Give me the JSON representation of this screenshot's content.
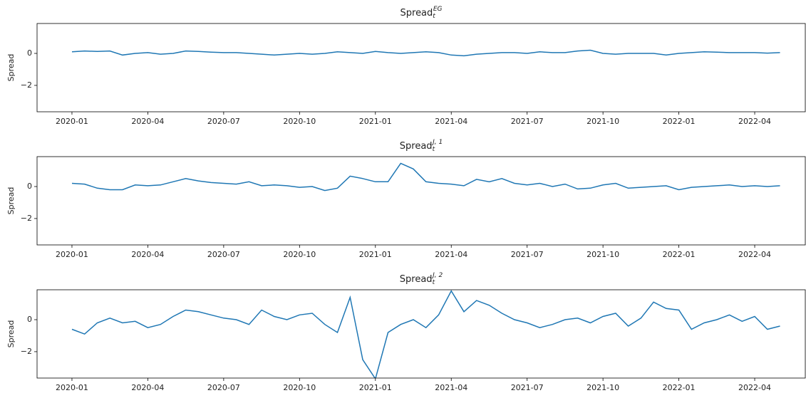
{
  "chart_data": [
    {
      "type": "line",
      "title": "Spread",
      "title_subscript": "t",
      "title_superscript": "EG",
      "ylabel": "Spread",
      "x": [
        0,
        0.5,
        1,
        1.5,
        2,
        2.5,
        3,
        3.5,
        4,
        4.5,
        5,
        5.5,
        6,
        6.5,
        7,
        7.5,
        8,
        8.5,
        9,
        9.5,
        10,
        10.5,
        11,
        11.5,
        12,
        12.5,
        13,
        13.5,
        14,
        14.5,
        15,
        15.5,
        16,
        16.5,
        17,
        17.5,
        18,
        18.5,
        19,
        19.5,
        20,
        20.5,
        21,
        21.5,
        22,
        22.5,
        23,
        23.5,
        24,
        24.5,
        25,
        25.5,
        26,
        26.5,
        27,
        27.5,
        28
      ],
      "series": [
        {
          "name": "Spread",
          "color": "#1f77b4",
          "values": [
            0.1,
            0.15,
            0.12,
            0.15,
            -0.1,
            0.0,
            0.05,
            -0.05,
            0.0,
            0.15,
            0.12,
            0.08,
            0.05,
            0.05,
            0.0,
            -0.05,
            -0.1,
            -0.05,
            0.0,
            -0.05,
            0.0,
            0.1,
            0.05,
            0.0,
            0.12,
            0.05,
            0.0,
            0.05,
            0.1,
            0.05,
            -0.1,
            -0.15,
            -0.05,
            0.0,
            0.05,
            0.05,
            0.0,
            0.1,
            0.05,
            0.05,
            0.15,
            0.2,
            0.0,
            -0.05,
            0.0,
            0.0,
            0.0,
            -0.1,
            0.0,
            0.05,
            0.1,
            0.08,
            0.05,
            0.05,
            0.05,
            0.02,
            0.05
          ]
        }
      ],
      "xlim": [
        -1.38,
        29.0
      ],
      "xticks": [
        {
          "value": 0,
          "label": "2020-01"
        },
        {
          "value": 3,
          "label": "2020-04"
        },
        {
          "value": 6,
          "label": "2020-07"
        },
        {
          "value": 9,
          "label": "2020-10"
        },
        {
          "value": 12,
          "label": "2021-01"
        },
        {
          "value": 15,
          "label": "2021-04"
        },
        {
          "value": 18,
          "label": "2021-07"
        },
        {
          "value": 21,
          "label": "2021-10"
        },
        {
          "value": 24,
          "label": "2022-01"
        },
        {
          "value": 27,
          "label": "2022-04"
        }
      ],
      "ylim": [
        -3.65,
        1.87
      ],
      "yticks": [
        {
          "value": -2,
          "label": "−2"
        },
        0
      ]
    },
    {
      "type": "line",
      "title": "Spread",
      "title_subscript": "t",
      "title_superscript": "J, 1",
      "ylabel": "Spread",
      "x": [
        0,
        0.5,
        1,
        1.5,
        2,
        2.5,
        3,
        3.5,
        4,
        4.5,
        5,
        5.5,
        6,
        6.5,
        7,
        7.5,
        8,
        8.5,
        9,
        9.5,
        10,
        10.5,
        11,
        11.5,
        12,
        12.5,
        13,
        13.5,
        14,
        14.5,
        15,
        15.5,
        16,
        16.5,
        17,
        17.5,
        18,
        18.5,
        19,
        19.5,
        20,
        20.5,
        21,
        21.5,
        22,
        22.5,
        23,
        23.5,
        24,
        24.5,
        25,
        25.5,
        26,
        26.5,
        27,
        27.5,
        28
      ],
      "series": [
        {
          "name": "Spread",
          "color": "#1f77b4",
          "values": [
            0.2,
            0.15,
            -0.1,
            -0.2,
            -0.2,
            0.1,
            0.05,
            0.1,
            0.3,
            0.5,
            0.35,
            0.25,
            0.2,
            0.15,
            0.3,
            0.05,
            0.1,
            0.05,
            -0.05,
            0.0,
            -0.25,
            -0.1,
            0.65,
            0.5,
            0.3,
            0.3,
            1.45,
            1.1,
            0.3,
            0.2,
            0.15,
            0.05,
            0.45,
            0.3,
            0.5,
            0.2,
            0.1,
            0.2,
            0.0,
            0.15,
            -0.15,
            -0.1,
            0.1,
            0.2,
            -0.1,
            -0.05,
            0.0,
            0.05,
            -0.2,
            -0.05,
            0.0,
            0.05,
            0.1,
            0.0,
            0.05,
            0.0,
            0.05
          ]
        }
      ],
      "xlim": [
        -1.38,
        29.0
      ],
      "xticks": [
        {
          "value": 0,
          "label": "2020-01"
        },
        {
          "value": 3,
          "label": "2020-04"
        },
        {
          "value": 6,
          "label": "2020-07"
        },
        {
          "value": 9,
          "label": "2020-10"
        },
        {
          "value": 12,
          "label": "2021-01"
        },
        {
          "value": 15,
          "label": "2021-04"
        },
        {
          "value": 18,
          "label": "2021-07"
        },
        {
          "value": 21,
          "label": "2021-10"
        },
        {
          "value": 24,
          "label": "2022-01"
        },
        {
          "value": 27,
          "label": "2022-04"
        }
      ],
      "ylim": [
        -3.65,
        1.87
      ],
      "yticks": [
        {
          "value": -2,
          "label": "−2"
        },
        0
      ]
    },
    {
      "type": "line",
      "title": "Spread",
      "title_subscript": "t",
      "title_superscript": "J, 2",
      "ylabel": "Spread",
      "x": [
        0,
        0.5,
        1,
        1.5,
        2,
        2.5,
        3,
        3.5,
        4,
        4.5,
        5,
        5.5,
        6,
        6.5,
        7,
        7.5,
        8,
        8.5,
        9,
        9.5,
        10,
        10.5,
        11,
        11.5,
        12,
        12.5,
        13,
        13.5,
        14,
        14.5,
        15,
        15.5,
        16,
        16.5,
        17,
        17.5,
        18,
        18.5,
        19,
        19.5,
        20,
        20.5,
        21,
        21.5,
        22,
        22.5,
        23,
        23.5,
        24,
        24.5,
        25,
        25.5,
        26,
        26.5,
        27,
        27.5,
        28
      ],
      "series": [
        {
          "name": "Spread",
          "color": "#1f77b4",
          "values": [
            -0.6,
            -0.9,
            -0.2,
            0.1,
            -0.2,
            -0.1,
            -0.5,
            -0.3,
            0.2,
            0.6,
            0.5,
            0.3,
            0.1,
            0.0,
            -0.3,
            0.6,
            0.2,
            0.0,
            0.3,
            0.4,
            -0.3,
            -0.8,
            1.4,
            -2.5,
            -3.7,
            -0.8,
            -0.3,
            0.0,
            -0.5,
            0.3,
            1.8,
            0.5,
            1.2,
            0.9,
            0.4,
            0.0,
            -0.2,
            -0.5,
            -0.3,
            0.0,
            0.1,
            -0.2,
            0.2,
            0.4,
            -0.4,
            0.1,
            1.1,
            0.7,
            0.6,
            -0.6,
            -0.2,
            0.0,
            0.3,
            -0.1,
            0.2,
            -0.6,
            -0.4
          ]
        }
      ],
      "xlim": [
        -1.38,
        29.0
      ],
      "xticks": [
        {
          "value": 0,
          "label": "2020-01"
        },
        {
          "value": 3,
          "label": "2020-04"
        },
        {
          "value": 6,
          "label": "2020-07"
        },
        {
          "value": 9,
          "label": "2020-10"
        },
        {
          "value": 12,
          "label": "2021-01"
        },
        {
          "value": 15,
          "label": "2021-04"
        },
        {
          "value": 18,
          "label": "2021-07"
        },
        {
          "value": 21,
          "label": "2021-10"
        },
        {
          "value": 24,
          "label": "2022-01"
        },
        {
          "value": 27,
          "label": "2022-04"
        }
      ],
      "ylim": [
        -3.65,
        1.87
      ],
      "yticks": [
        {
          "value": -2,
          "label": "−2"
        },
        0
      ]
    }
  ]
}
